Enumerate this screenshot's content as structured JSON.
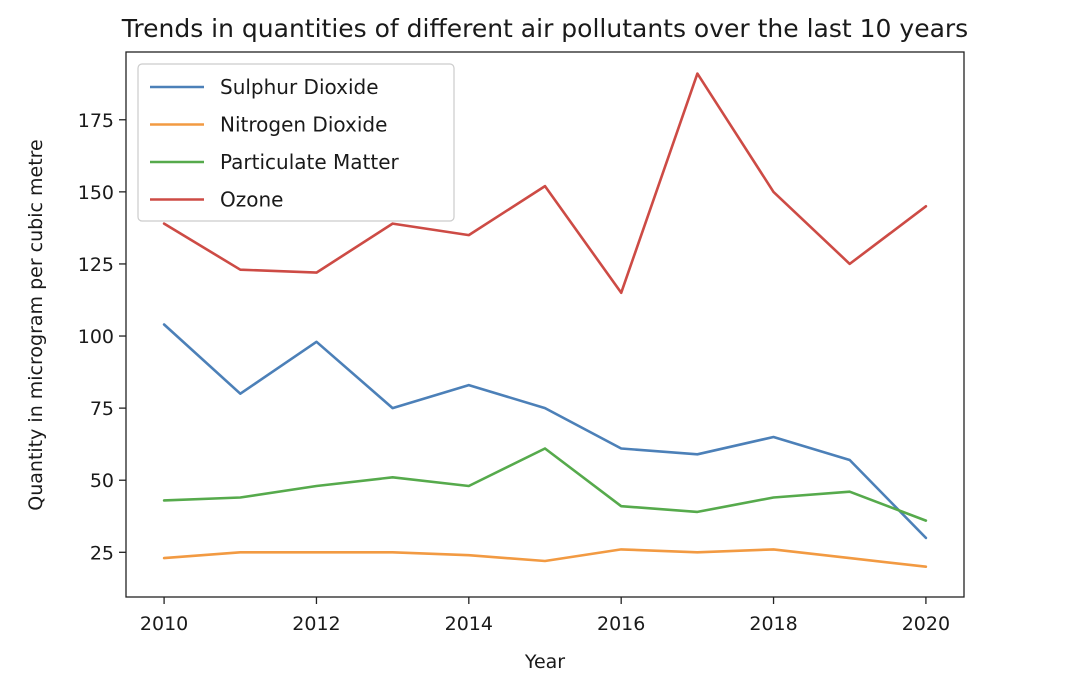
{
  "chart_data": {
    "type": "line",
    "title": "Trends in quantities of different air pollutants over the last 10 years",
    "xlabel": "Year",
    "ylabel": "Quantity in microgram per cubic metre",
    "x": [
      2010,
      2011,
      2012,
      2013,
      2014,
      2015,
      2016,
      2017,
      2018,
      2019,
      2020
    ],
    "xlim": [
      2009.5,
      2020.5
    ],
    "ylim": [
      9.5,
      198.5
    ],
    "xticks": [
      2010,
      2012,
      2014,
      2016,
      2018,
      2020
    ],
    "yticks": [
      25,
      50,
      75,
      100,
      125,
      150,
      175
    ],
    "grid": false,
    "legend": "top-left",
    "series": [
      {
        "name": "Sulphur Dioxide",
        "color": "#4c80b8",
        "values": [
          104,
          80,
          98,
          75,
          83,
          75,
          61,
          59,
          65,
          57,
          30
        ]
      },
      {
        "name": "Nitrogen Dioxide",
        "color": "#f29a42",
        "values": [
          23,
          25,
          25,
          25,
          24,
          22,
          26,
          25,
          26,
          23,
          20
        ]
      },
      {
        "name": "Particulate Matter",
        "color": "#56aa4c",
        "values": [
          43,
          44,
          48,
          51,
          48,
          61,
          41,
          39,
          44,
          46,
          36
        ]
      },
      {
        "name": "Ozone",
        "color": "#cd4b45",
        "values": [
          139,
          123,
          122,
          139,
          135,
          152,
          115,
          191,
          150,
          125,
          145
        ]
      }
    ]
  }
}
